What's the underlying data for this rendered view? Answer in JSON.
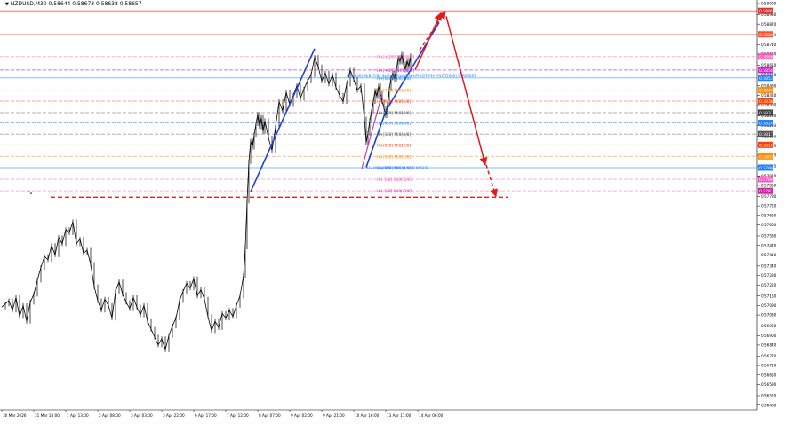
{
  "chart_data": {
    "type": "line",
    "title": "NZDUSD,M30",
    "quote": "0.58644 0.58673 0.58638 0.58657",
    "ylim": [
      0.5643,
      0.59
    ],
    "y_ticks": [
      0.59,
      0.5893,
      0.5887,
      0.588,
      0.5874,
      0.5868,
      0.5861,
      0.5855,
      0.5848,
      0.5842,
      0.5836,
      0.5829,
      0.5823,
      0.5816,
      0.581,
      0.5804,
      0.5797,
      0.5791,
      0.5785,
      0.5778,
      0.5772,
      0.5766,
      0.576,
      0.5753,
      0.5747,
      0.5741,
      0.5734,
      0.5728,
      0.5722,
      0.5715,
      0.5709,
      0.5703,
      0.5696,
      0.569,
      0.5684,
      0.5677,
      0.5671,
      0.5665,
      0.5659,
      0.5652,
      0.5646
    ],
    "x_ticks": [
      "30 Mar 2026",
      "31 Mar 18:00",
      "1 Apr 13:00",
      "2 Apr 08:00",
      "3 Apr 03:00",
      "3 Apr 22:00",
      "6 Apr 17:00",
      "7 Apr 12:00",
      "8 Apr 07:00",
      "9 Apr 02:00",
      "9 Apr 21:00",
      "10 Apr 16:00",
      "13 Apr 11:00",
      "14 Apr 06:00"
    ],
    "x_tick_pos": [
      0,
      36,
      72,
      108,
      144,
      180,
      216,
      252,
      288,
      324,
      360,
      396,
      432,
      468
    ],
    "x_range": [
      0,
      495
    ],
    "series": [
      {
        "values": [
          [
            0,
            0.5708
          ],
          [
            4,
            0.571
          ],
          [
            8,
            0.5712
          ],
          [
            12,
            0.5706
          ],
          [
            16,
            0.5714
          ],
          [
            20,
            0.5702
          ],
          [
            24,
            0.5709
          ],
          [
            28,
            0.5699
          ],
          [
            32,
            0.5711
          ],
          [
            36,
            0.5716
          ],
          [
            40,
            0.5725
          ],
          [
            44,
            0.5733
          ],
          [
            48,
            0.574
          ],
          [
            52,
            0.5738
          ],
          [
            56,
            0.5747
          ],
          [
            60,
            0.5741
          ],
          [
            64,
            0.5752
          ],
          [
            68,
            0.5748
          ],
          [
            72,
            0.5757
          ],
          [
            76,
            0.5755
          ],
          [
            80,
            0.5762
          ],
          [
            84,
            0.5748
          ],
          [
            88,
            0.5751
          ],
          [
            92,
            0.5742
          ],
          [
            96,
            0.5744
          ],
          [
            100,
            0.5735
          ],
          [
            104,
            0.5721
          ],
          [
            108,
            0.5712
          ],
          [
            112,
            0.5706
          ],
          [
            116,
            0.5713
          ],
          [
            120,
            0.5709
          ],
          [
            124,
            0.5701
          ],
          [
            128,
            0.5718
          ],
          [
            132,
            0.5724
          ],
          [
            136,
            0.5716
          ],
          [
            140,
            0.5711
          ],
          [
            144,
            0.5707
          ],
          [
            148,
            0.5714
          ],
          [
            152,
            0.5708
          ],
          [
            156,
            0.5703
          ],
          [
            160,
            0.5709
          ],
          [
            164,
            0.5699
          ],
          [
            168,
            0.5694
          ],
          [
            172,
            0.5689
          ],
          [
            176,
            0.5684
          ],
          [
            180,
            0.5688
          ],
          [
            184,
            0.5681
          ],
          [
            188,
            0.569
          ],
          [
            192,
            0.5696
          ],
          [
            196,
            0.5701
          ],
          [
            200,
            0.5712
          ],
          [
            204,
            0.5718
          ],
          [
            208,
            0.5723
          ],
          [
            212,
            0.572
          ],
          [
            216,
            0.5726
          ],
          [
            220,
            0.5715
          ],
          [
            224,
            0.5719
          ],
          [
            228,
            0.5713
          ],
          [
            232,
            0.5702
          ],
          [
            236,
            0.5693
          ],
          [
            240,
            0.5699
          ],
          [
            244,
            0.5695
          ],
          [
            248,
            0.5704
          ],
          [
            252,
            0.5701
          ],
          [
            256,
            0.5706
          ],
          [
            260,
            0.5702
          ],
          [
            264,
            0.5709
          ],
          [
            268,
            0.5715
          ],
          [
            272,
            0.5728
          ],
          [
            274,
            0.5746
          ],
          [
            276,
            0.5775
          ],
          [
            278,
            0.58
          ],
          [
            280,
            0.5813
          ],
          [
            282,
            0.5809
          ],
          [
            284,
            0.5817
          ],
          [
            286,
            0.5824
          ],
          [
            288,
            0.583
          ],
          [
            290,
            0.5822
          ],
          [
            292,
            0.5828
          ],
          [
            294,
            0.5819
          ],
          [
            296,
            0.5826
          ],
          [
            300,
            0.5815
          ],
          [
            304,
            0.5807
          ],
          [
            308,
            0.5822
          ],
          [
            312,
            0.5838
          ],
          [
            316,
            0.5832
          ],
          [
            320,
            0.5844
          ],
          [
            324,
            0.5836
          ],
          [
            328,
            0.5842
          ],
          [
            332,
            0.5848
          ],
          [
            336,
            0.584
          ],
          [
            340,
            0.5846
          ],
          [
            344,
            0.5851
          ],
          [
            348,
            0.5855
          ],
          [
            352,
            0.5866
          ],
          [
            356,
            0.586
          ],
          [
            360,
            0.5851
          ],
          [
            364,
            0.5856
          ],
          [
            368,
            0.5849
          ],
          [
            372,
            0.5855
          ],
          [
            376,
            0.5847
          ],
          [
            380,
            0.5842
          ],
          [
            384,
            0.5838
          ],
          [
            388,
            0.5849
          ],
          [
            392,
            0.5858
          ],
          [
            396,
            0.5852
          ],
          [
            400,
            0.5845
          ],
          [
            404,
            0.5848
          ],
          [
            408,
            0.5827
          ],
          [
            410,
            0.5812
          ],
          [
            412,
            0.5818
          ],
          [
            414,
            0.5826
          ],
          [
            416,
            0.5832
          ],
          [
            418,
            0.5838
          ],
          [
            420,
            0.5845
          ],
          [
            422,
            0.5841
          ],
          [
            424,
            0.5848
          ],
          [
            426,
            0.5843
          ],
          [
            428,
            0.5838
          ],
          [
            430,
            0.5834
          ],
          [
            432,
            0.5829
          ],
          [
            434,
            0.5836
          ],
          [
            436,
            0.5846
          ],
          [
            438,
            0.5853
          ],
          [
            440,
            0.5856
          ],
          [
            442,
            0.5852
          ],
          [
            444,
            0.5858
          ],
          [
            446,
            0.5866
          ],
          [
            448,
            0.5863
          ],
          [
            450,
            0.5868
          ],
          [
            452,
            0.5862
          ],
          [
            454,
            0.5858
          ],
          [
            456,
            0.5864
          ],
          [
            458,
            0.586
          ],
          [
            460,
            0.5867
          ]
        ]
      }
    ],
    "levels": [
      {
        "price": 0.58954,
        "label": "",
        "color": "#ff7070",
        "style": "solid",
        "width": 1,
        "badge": "0.58954",
        "badge_color": "#e03030"
      },
      {
        "price": 0.58805,
        "label": "",
        "color": "#ff9a7a",
        "style": "solid",
        "width": 1,
        "badge": "0.58805",
        "badge_color": "#ff5030"
      },
      {
        "price": 0.58665,
        "label": "H+[+1/8] M/8[8/8]",
        "color": "#ffb0d8",
        "style": "dashed",
        "width": 1,
        "badge": "0.58665",
        "badge_color": "#ff50c0"
      },
      {
        "price": 0.5858,
        "label": "H+[+0/8] M/8[8/8]",
        "color": "#e070e0",
        "style": "dashed",
        "width": 1,
        "badge": "0.58580",
        "badge_color": "#d020d0"
      },
      {
        "price": 0.5853,
        "label": "H+[8/8] M/8[7/8]",
        "color": "#7fbfff",
        "style": "solid",
        "width": 1,
        "badge": "0.58530",
        "badge_color": "#2080ff"
      },
      {
        "price": 0.58452,
        "label": "H+[7/8] M/8[6/8]",
        "color": "#ffc080",
        "style": "dashed",
        "width": 1,
        "badge": "0.58452",
        "badge_color": "#ff8c00"
      },
      {
        "price": 0.58383,
        "label": "H+[6/8] M/8[5/8]",
        "color": "#ffa090",
        "style": "dashed",
        "width": 1,
        "badge": "0.58383",
        "badge_color": "#ff4000"
      },
      {
        "price": 0.5831,
        "label": "H+[5/8] M/8[4/8]",
        "color": "#b0b0b0",
        "style": "dashed",
        "width": 1,
        "badge": "0.58310",
        "badge_color": "#404040"
      },
      {
        "price": 0.58245,
        "label": "H+[4/8] M/8[4/8]",
        "color": "#7fbfff",
        "style": "dashed",
        "width": 1,
        "badge": "0.58245",
        "badge_color": "#2080ff"
      },
      {
        "price": 0.58174,
        "label": "H+[3/8] M/8[3/8]",
        "color": "#b0b0b0",
        "style": "dashed",
        "width": 1,
        "badge": "0.58174",
        "badge_color": "#505050"
      },
      {
        "price": 0.58106,
        "label": "H+[2/8] M/8[2/8]",
        "color": "#ffa090",
        "style": "dashed",
        "width": 1,
        "badge": "0.58106",
        "badge_color": "#ff4000"
      },
      {
        "price": 0.58033,
        "label": "H+[1/8] M/8[1/8]",
        "color": "#ffc080",
        "style": "dashed",
        "width": 1,
        "badge": "0.58033",
        "badge_color": "#ff8c00"
      },
      {
        "price": 0.57962,
        "label": "H+[0/8] M/8[0/8]",
        "color": "#7fbfff",
        "style": "solid",
        "width": 1,
        "badge": "0.57962",
        "badge_color": "#2080ff"
      },
      {
        "price": 0.57889,
        "label": "H-[-1/8] M/8[-1/8]",
        "color": "#ffb0d8",
        "style": "dashed",
        "width": 1,
        "badge": "0.57889",
        "badge_color": "#ff50c0"
      },
      {
        "price": 0.57815,
        "label": "H-[-2/8] M/8[-2/8]",
        "color": "#ffb0d8",
        "style": "dashed",
        "width": 1,
        "badge": "0.57815",
        "badge_color": "#d020a0"
      }
    ],
    "pivot_label": "H+[8/8] M/8[7/8] SUP M.PIVOT H+PIVOT M+PIVOT[6/8] H.RESIST",
    "support_label": "H+[0/8] M/8[0/8] H.SUP M.SUP",
    "support_line": {
      "price": 0.57775,
      "x_start": 55,
      "x_end": 570,
      "color": "#e02020"
    },
    "blue_trends": [
      {
        "x1": 280,
        "y1": 0.5781,
        "x2": 352,
        "y2": 0.58715,
        "color": "#1f3fd0"
      },
      {
        "x1": 410,
        "y1": 0.57965,
        "x2": 432,
        "y2": 0.5832,
        "color": "#1f3fd0"
      },
      {
        "x1": 432,
        "y1": 0.5832,
        "x2": 492,
        "y2": 0.5888,
        "color": "#1f3fd0"
      }
    ],
    "red_arrows": [
      {
        "x1": 465,
        "y1": 0.5858,
        "x2": 494,
        "y2": 0.5894,
        "color": "#e01a1a",
        "dashed": false
      },
      {
        "x1": 470,
        "y1": 0.58705,
        "x2": 499,
        "y2": 0.5895,
        "color": "#e01a1a",
        "dashed": true
      },
      {
        "x1": 500,
        "y1": 0.5892,
        "x2": 544,
        "y2": 0.5798,
        "color": "#e01a1a",
        "dashed": false
      },
      {
        "x1": 545,
        "y1": 0.5798,
        "x2": 556,
        "y2": 0.5778,
        "color": "#e01a1a",
        "dashed": true
      }
    ],
    "pink_trends": [
      {
        "x1": 405,
        "y1": 0.57955,
        "x2": 428,
        "y2": 0.5843,
        "color": "#c040c0"
      }
    ],
    "marker": "↘",
    "grid": false,
    "colors": {
      "candle": "#000000",
      "background": "#ffffff"
    }
  }
}
